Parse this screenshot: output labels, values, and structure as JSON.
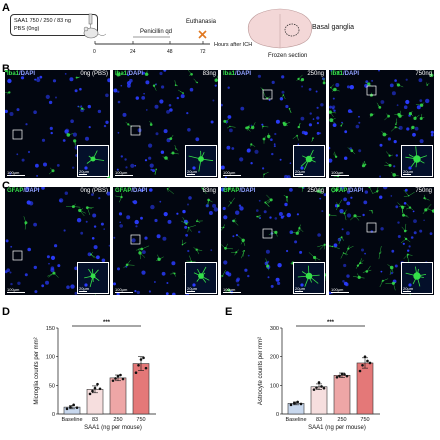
{
  "panels": {
    "a": "A",
    "b": "B",
    "c": "C",
    "d": "D",
    "e": "E"
  },
  "timeline": {
    "dose_line1": "SAA1 750 / 250 / 83 ng",
    "dose_line2": "PBS (0ng)",
    "penicillin": "Penicillin qd",
    "euthanasia": "Euthanasia",
    "ticks": [
      "0",
      "24",
      "48",
      "72"
    ],
    "axis_label": "Hours after ICH",
    "brain_label": "Basal ganglia",
    "section_label": "Frozen section"
  },
  "micro_b": {
    "stain": "Iba1",
    "counter": "/DAPI",
    "doses": [
      "0ng (PBS)",
      "83ng",
      "250ng",
      "750ng"
    ],
    "scale_main": "100μm",
    "scale_inset": "20μm"
  },
  "micro_c": {
    "stain": "GFAP",
    "counter": "/DAPI",
    "doses": [
      "0ng (PBS)",
      "83ng",
      "250ng",
      "750ng"
    ],
    "scale_main": "100μm",
    "scale_inset": "20μm"
  },
  "colors": {
    "bar_fills": [
      "#c8d8ee",
      "#f6dede",
      "#eea6a6",
      "#e47878"
    ],
    "green": "#35e04a",
    "blue": "#2a3cff"
  },
  "chart_data": [
    {
      "type": "bar",
      "panel": "D",
      "categories": [
        "Baseline",
        "83",
        "250",
        "750"
      ],
      "values": [
        12,
        43,
        63,
        88
      ],
      "errors": [
        3,
        6,
        5,
        12
      ],
      "points": [
        [
          9,
          12,
          16,
          11
        ],
        [
          35,
          40,
          45,
          52,
          44
        ],
        [
          58,
          62,
          66,
          68,
          61
        ],
        [
          72,
          85,
          95,
          98,
          80
        ]
      ],
      "ylabel": "Microglia counts per mm²",
      "xlabel": "SAA1 (ng per mouse)",
      "ylim": [
        0,
        150
      ],
      "yticks": [
        0,
        50,
        100,
        150
      ],
      "significance": "***"
    },
    {
      "type": "bar",
      "panel": "E",
      "categories": [
        "Baseline",
        "83",
        "250",
        "750"
      ],
      "values": [
        37,
        95,
        135,
        178
      ],
      "errors": [
        5,
        10,
        8,
        18
      ],
      "points": [
        [
          32,
          38,
          42,
          35
        ],
        [
          85,
          92,
          110,
          96,
          90
        ],
        [
          128,
          133,
          140,
          138,
          132
        ],
        [
          150,
          170,
          200,
          185,
          178
        ]
      ],
      "ylabel": "Astrocyte counts per mm²",
      "xlabel": "SAA1 (ng per mouse)",
      "ylim": [
        0,
        300
      ],
      "yticks": [
        0,
        100,
        200,
        300
      ],
      "significance": "***"
    }
  ]
}
